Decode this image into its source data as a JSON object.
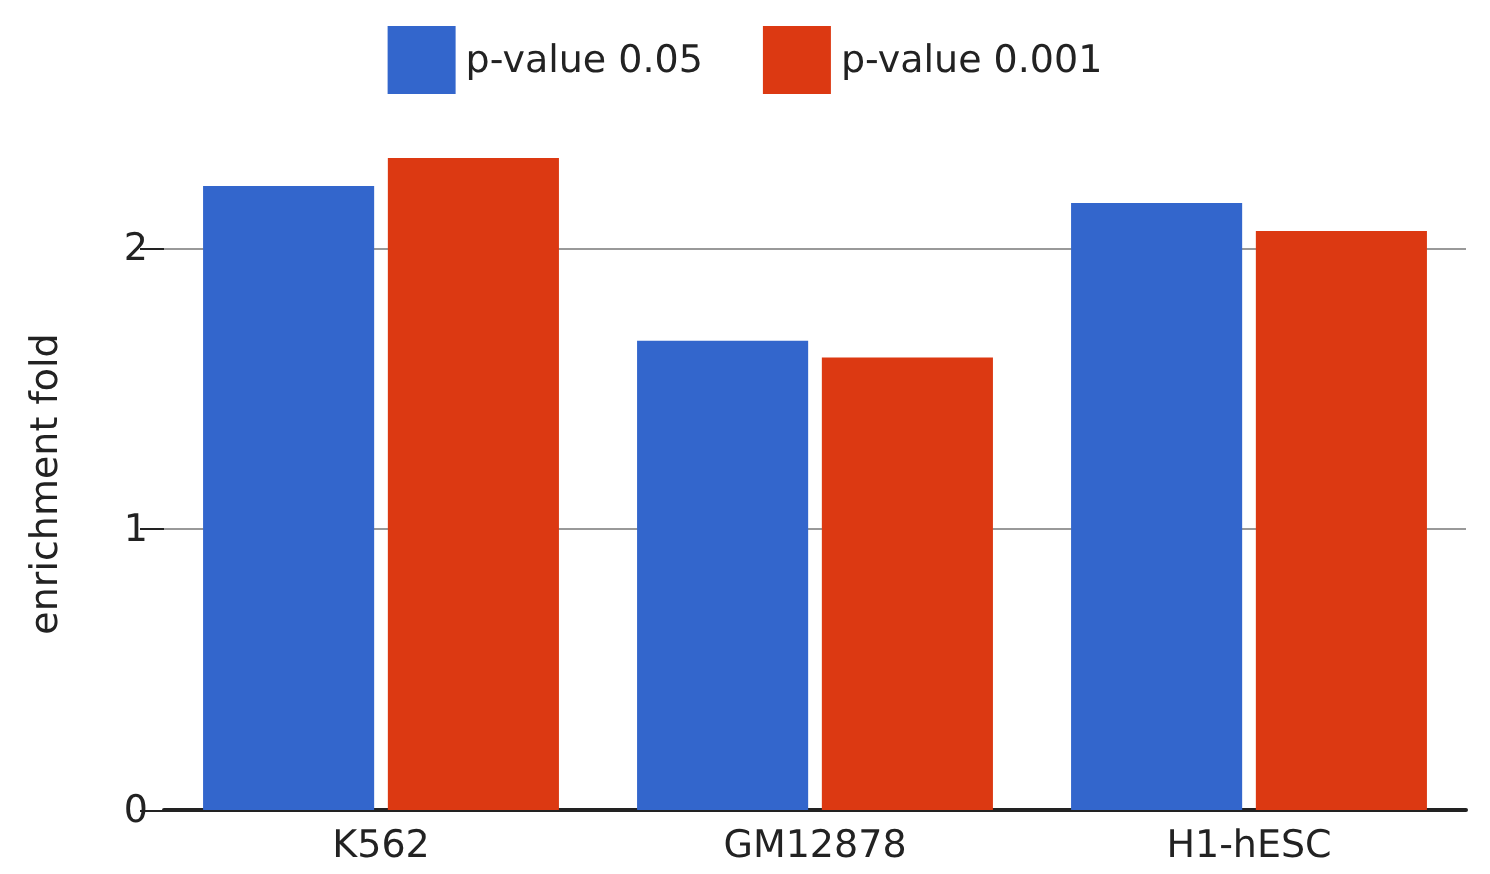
{
  "chart_data": {
    "type": "bar",
    "ylabel": "enrichment fold",
    "categories": [
      "K562",
      "GM12878",
      "H1-hESC"
    ],
    "series": [
      {
        "name": "p-value 0.05",
        "color": "#3366cc",
        "values": [
          2.22,
          1.67,
          2.16
        ]
      },
      {
        "name": "p-value 0.001",
        "color": "#dc3912",
        "values": [
          2.32,
          1.61,
          2.06
        ]
      }
    ],
    "ylim": [
      0,
      2.32
    ],
    "yticks": [
      0,
      1,
      2
    ],
    "grid": "y",
    "legend": "top"
  }
}
